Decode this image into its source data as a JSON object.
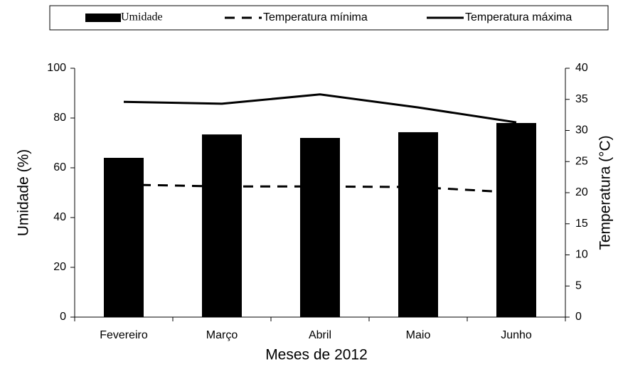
{
  "chart_data": {
    "type": "bar-line",
    "x_label": "Meses de 2012",
    "y_label": "Umidade (%)",
    "y2_label": "Temperatura (°C)",
    "categories": [
      "Fevereiro",
      "Março",
      "Abril",
      "Maio",
      "Junho"
    ],
    "series": [
      {
        "name": "Umidade",
        "type": "bar",
        "color": "#000000",
        "values": [
          64,
          73.4,
          72,
          74.3,
          78
        ]
      },
      {
        "name": "Temperatura mínima",
        "type": "line",
        "line_style": "dashed",
        "axis": "y2",
        "color": "#000000",
        "values": [
          21.3,
          21.0,
          21.0,
          20.9,
          20.0
        ]
      },
      {
        "name": "Temperatura máxima",
        "type": "line",
        "line_style": "solid",
        "axis": "y2",
        "color": "#000000",
        "values": [
          34.6,
          34.3,
          35.8,
          33.7,
          31.3
        ]
      }
    ],
    "ylim": [
      0,
      100
    ],
    "yticks": [
      0,
      20,
      40,
      60,
      80,
      100
    ],
    "y2lim": [
      0,
      40
    ],
    "y2ticks": [
      0,
      5,
      10,
      15,
      20,
      25,
      30,
      35,
      40
    ],
    "legend_position": "top"
  }
}
